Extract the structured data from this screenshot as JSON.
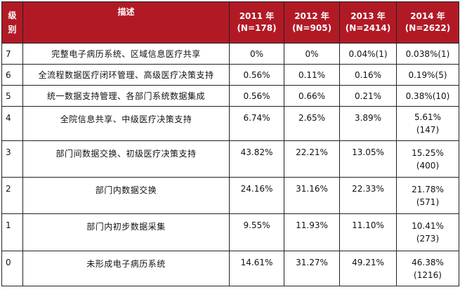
{
  "header": {
    "level": "级别",
    "level_line1": "级",
    "level_line2": "别",
    "description": "描述",
    "years": [
      {
        "year": "2011 年",
        "n": "(N=178)"
      },
      {
        "year": "2012 年",
        "n": "(N=905)"
      },
      {
        "year": "2013 年",
        "n": "(N=2414)"
      },
      {
        "year": "2014 年",
        "n": "(N=2622)"
      }
    ]
  },
  "rows": [
    {
      "level": "7",
      "desc": "完整电子病历系统、区域信息医疗共享",
      "v2011": "0%",
      "v2012": "0%",
      "v2013": "0.04%(1)",
      "v2014_pct": "0.038%(1)",
      "v2014_n": ""
    },
    {
      "level": "6",
      "desc": "全流程数据医疗闭环管理、高级医疗决策支持",
      "v2011": "0.56%",
      "v2012": "0.11%",
      "v2013": "0.16%",
      "v2014_pct": "0.19%(5)",
      "v2014_n": ""
    },
    {
      "level": "5",
      "desc": "统一数据支持管理、各部门系统数据集成",
      "v2011": "0.56%",
      "v2012": "0.66%",
      "v2013": "0.21%",
      "v2014_pct": "0.38%(10)",
      "v2014_n": ""
    },
    {
      "level": "4",
      "desc": "全院信息共享、中级医疗决策支持",
      "v2011": "6.74%",
      "v2012": "2.65%",
      "v2013": "3.89%",
      "v2014_pct": "5.61%",
      "v2014_n": "(147)"
    },
    {
      "level": "3",
      "desc": "部门间数据交换、初级医疗决策支持",
      "v2011": "43.82%",
      "v2012": "22.21%",
      "v2013": "13.05%",
      "v2014_pct": "15.25%",
      "v2014_n": "(400)"
    },
    {
      "level": "2",
      "desc": "部门内数据交换",
      "v2011": "24.16%",
      "v2012": "31.16%",
      "v2013": "22.33%",
      "v2014_pct": "21.78%",
      "v2014_n": "(571)"
    },
    {
      "level": "1",
      "desc": "部门内初步数据采集",
      "v2011": "9.55%",
      "v2012": "11.93%",
      "v2013": "11.10%",
      "v2014_pct": "10.41%",
      "v2014_n": "(273)"
    },
    {
      "level": "0",
      "desc": "未形成电子病历系统",
      "v2011": "14.61%",
      "v2012": "31.27%",
      "v2013": "49.21%",
      "v2014_pct": "46.38%",
      "v2014_n": "(1216)"
    }
  ],
  "colors": {
    "header_bg": "#b11a25",
    "header_text": "#ffffff",
    "border": "#222222"
  }
}
